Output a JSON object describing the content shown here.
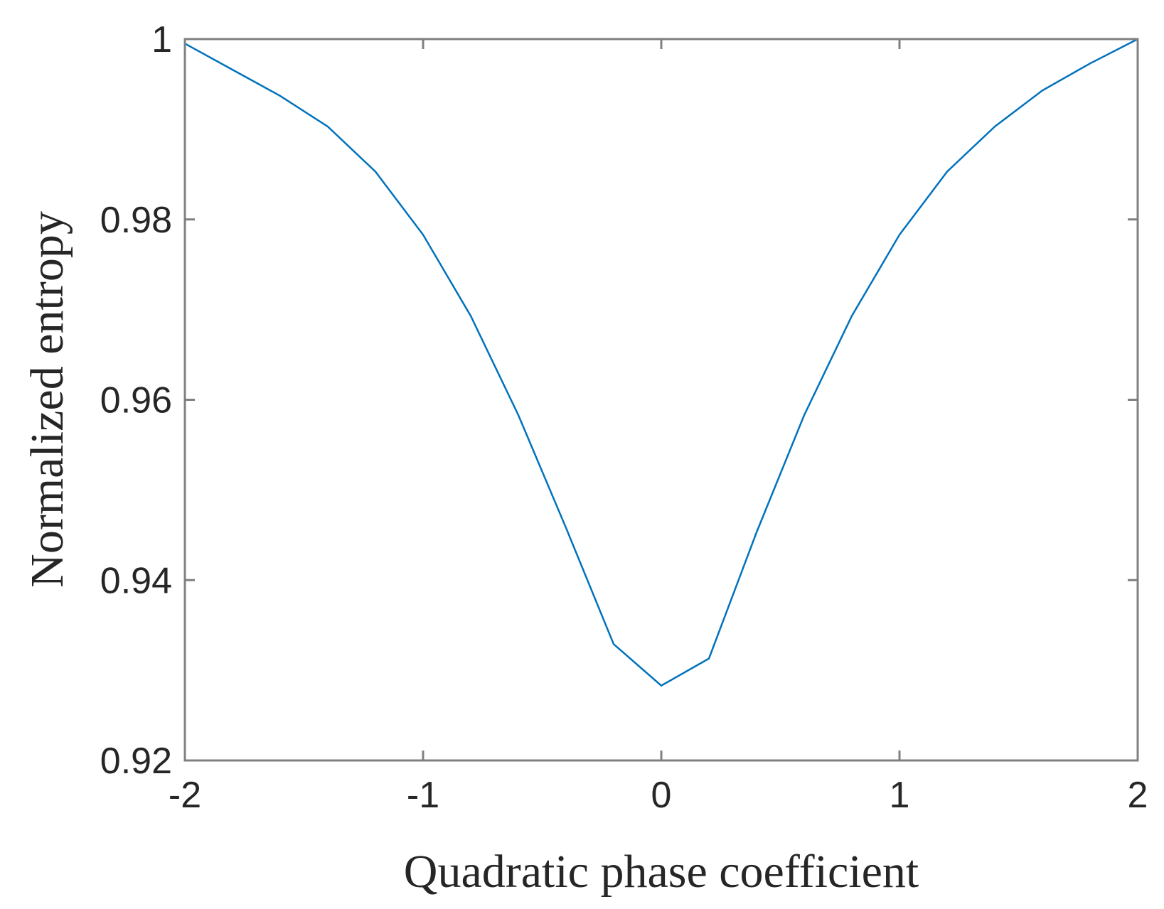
{
  "chart_data": {
    "type": "line",
    "title": "",
    "xlabel": "Quadratic phase coefficient",
    "ylabel": "Normalized entropy",
    "xlim": [
      -2,
      2
    ],
    "ylim": [
      0.92,
      1
    ],
    "xticks": [
      -2,
      -1,
      0,
      1,
      2
    ],
    "xtick_labels": [
      "-2",
      "-1",
      "0",
      "1",
      "2"
    ],
    "yticks": [
      0.92,
      0.94,
      0.96,
      0.98,
      1
    ],
    "ytick_labels": [
      "0.92",
      "0.94",
      "0.96",
      "0.98",
      "1"
    ],
    "grid": false,
    "box": true,
    "series": [
      {
        "color": "#0072BD",
        "x": [
          -2,
          -1.8,
          -1.6,
          -1.4,
          -1.2,
          -1,
          -0.8,
          -0.6,
          -0.4,
          -0.2,
          0,
          0.2,
          0.4,
          0.6,
          0.8,
          1,
          1.2,
          1.4,
          1.6,
          1.8,
          2
        ],
        "y": [
          0.9995,
          0.9966,
          0.9937,
          0.9903,
          0.9853,
          0.9783,
          0.9693,
          0.9583,
          0.9458,
          0.9329,
          0.9283,
          0.9313,
          0.9453,
          0.9583,
          0.9693,
          0.9783,
          0.9853,
          0.9903,
          0.9943,
          0.9973,
          1.0
        ]
      }
    ]
  }
}
